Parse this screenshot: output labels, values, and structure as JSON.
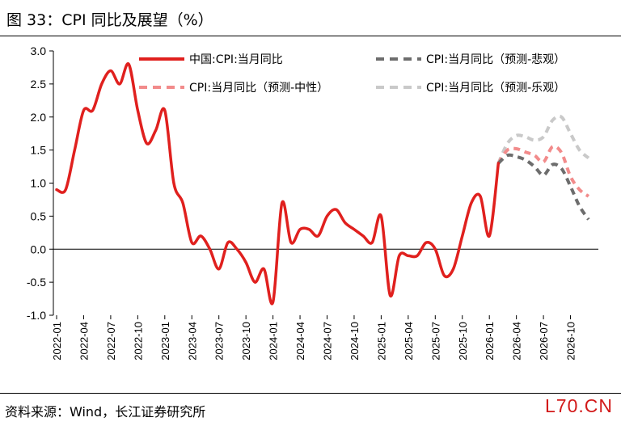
{
  "header": {
    "title": "图 33：CPI 同比及展望（%）"
  },
  "footer": {
    "source": "资料来源：Wind，长江证券研究所",
    "watermark": "L70.CN"
  },
  "chart_data": {
    "type": "line",
    "xlabel": "",
    "ylabel": "",
    "ylim": [
      -1.0,
      3.0
    ],
    "yticks": [
      "3.0",
      "2.5",
      "2.0",
      "1.5",
      "1.0",
      "0.5",
      "0.0",
      "-0.5",
      "-1.0"
    ],
    "grid": false,
    "legend_position": "top",
    "x_ticks": [
      "2022-01",
      "2022-04",
      "2022-07",
      "2022-10",
      "2023-01",
      "2023-04",
      "2023-07",
      "2023-10",
      "2024-01",
      "2024-04",
      "2024-07",
      "2024-10",
      "2025-01",
      "2025-04",
      "2025-07",
      "2025-10",
      "2026-01",
      "2026-04",
      "2026-07",
      "2026-10"
    ],
    "series": [
      {
        "name": "中国:CPI:当月同比",
        "color": "#e0201e",
        "style": "solid",
        "x": [
          "2022-01",
          "2022-02",
          "2022-03",
          "2022-04",
          "2022-05",
          "2022-06",
          "2022-07",
          "2022-08",
          "2022-09",
          "2022-10",
          "2022-11",
          "2022-12",
          "2023-01",
          "2023-02",
          "2023-03",
          "2023-04",
          "2023-05",
          "2023-06",
          "2023-07",
          "2023-08",
          "2023-09",
          "2023-10",
          "2023-11",
          "2023-12",
          "2024-01",
          "2024-02",
          "2024-03",
          "2024-04",
          "2024-05",
          "2024-06",
          "2024-07",
          "2024-08",
          "2024-09",
          "2024-10",
          "2024-11",
          "2024-12",
          "2025-01",
          "2025-02",
          "2025-03",
          "2025-04",
          "2025-05",
          "2025-06",
          "2025-07",
          "2025-08",
          "2025-09",
          "2025-10",
          "2025-11",
          "2025-12",
          "2026-01",
          "2026-02"
        ],
        "values": [
          0.9,
          0.9,
          1.5,
          2.1,
          2.1,
          2.5,
          2.7,
          2.5,
          2.8,
          2.1,
          1.6,
          1.8,
          2.1,
          1.0,
          0.7,
          0.1,
          0.2,
          0.0,
          -0.3,
          0.1,
          0.0,
          -0.2,
          -0.5,
          -0.3,
          -0.8,
          0.7,
          0.1,
          0.3,
          0.3,
          0.2,
          0.5,
          0.6,
          0.4,
          0.3,
          0.2,
          0.1,
          0.5,
          -0.7,
          -0.1,
          -0.1,
          -0.1,
          0.1,
          0.0,
          -0.4,
          -0.3,
          0.2,
          0.7,
          0.8,
          0.2,
          1.3
        ]
      },
      {
        "name": "CPI:当月同比（预测-悲观）",
        "color": "#6d6d6d",
        "style": "dashed",
        "x": [
          "2026-02",
          "2026-03",
          "2026-04",
          "2026-05",
          "2026-06",
          "2026-07",
          "2026-08",
          "2026-09",
          "2026-10",
          "2026-11",
          "2026-12"
        ],
        "values": [
          1.3,
          1.42,
          1.4,
          1.35,
          1.25,
          1.12,
          1.28,
          1.22,
          0.95,
          0.65,
          0.45
        ]
      },
      {
        "name": "CPI:当月同比（预测-中性）",
        "color": "#f28b8b",
        "style": "dashed",
        "x": [
          "2026-02",
          "2026-03",
          "2026-04",
          "2026-05",
          "2026-06",
          "2026-07",
          "2026-08",
          "2026-09",
          "2026-10",
          "2026-11",
          "2026-12"
        ],
        "values": [
          1.3,
          1.5,
          1.52,
          1.47,
          1.42,
          1.32,
          1.55,
          1.46,
          1.1,
          0.9,
          0.8
        ]
      },
      {
        "name": "CPI:当月同比（预测-乐观）",
        "color": "#c9c9c9",
        "style": "dashed",
        "x": [
          "2026-02",
          "2026-03",
          "2026-04",
          "2026-05",
          "2026-06",
          "2026-07",
          "2026-08",
          "2026-09",
          "2026-10",
          "2026-11",
          "2026-12"
        ],
        "values": [
          1.3,
          1.6,
          1.72,
          1.7,
          1.65,
          1.7,
          1.95,
          2.0,
          1.75,
          1.5,
          1.38
        ]
      }
    ]
  }
}
